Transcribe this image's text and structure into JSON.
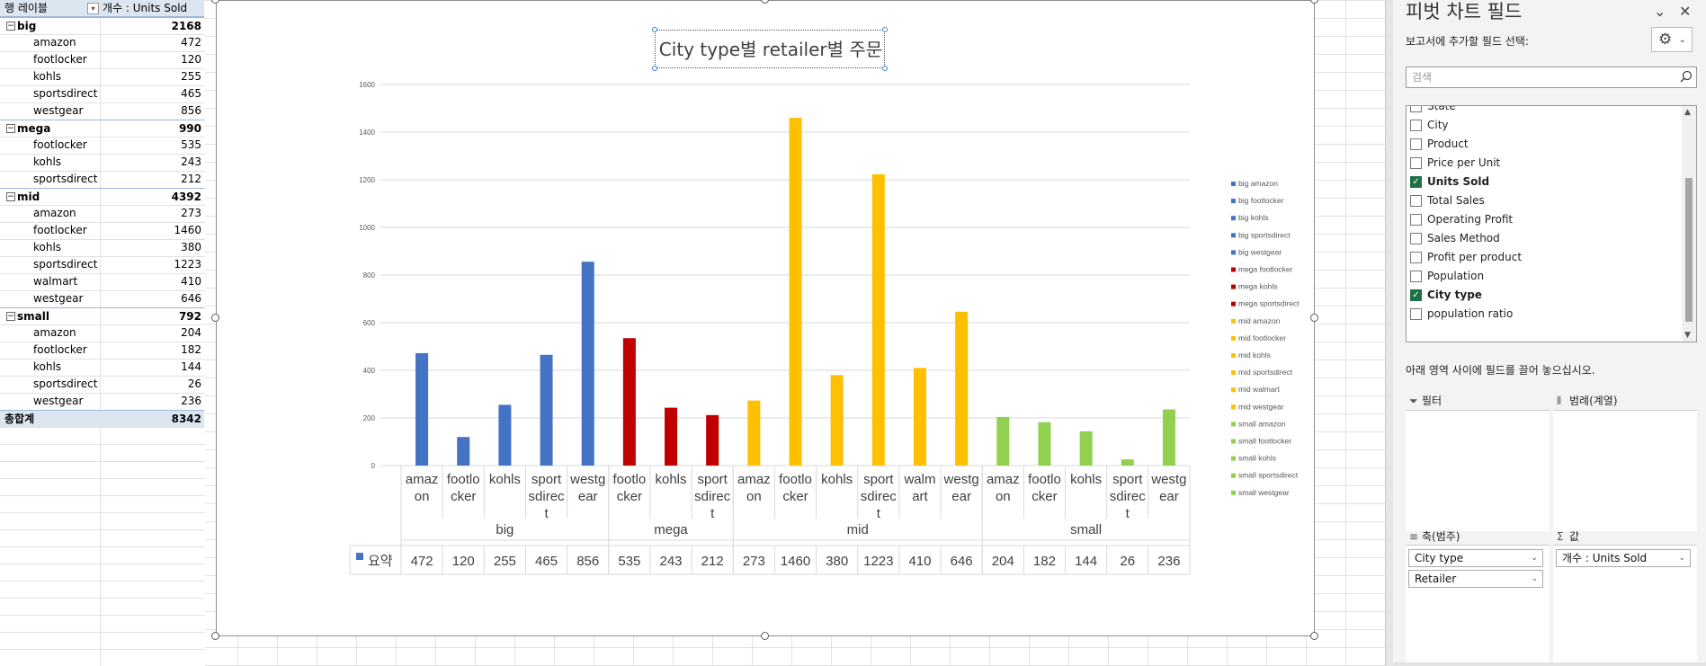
{
  "pivot": {
    "header_row_label": "행 레이블",
    "header_value_label": "개수 : Units Sold",
    "groups": [
      {
        "name": "big",
        "total": "2168",
        "items": [
          {
            "name": "amazon",
            "value": "472"
          },
          {
            "name": "footlocker",
            "value": "120"
          },
          {
            "name": "kohls",
            "value": "255"
          },
          {
            "name": "sportsdirect",
            "value": "465"
          },
          {
            "name": "westgear",
            "value": "856"
          }
        ]
      },
      {
        "name": "mega",
        "total": "990",
        "items": [
          {
            "name": "footlocker",
            "value": "535"
          },
          {
            "name": "kohls",
            "value": "243"
          },
          {
            "name": "sportsdirect",
            "value": "212"
          }
        ]
      },
      {
        "name": "mid",
        "total": "4392",
        "items": [
          {
            "name": "amazon",
            "value": "273"
          },
          {
            "name": "footlocker",
            "value": "1460"
          },
          {
            "name": "kohls",
            "value": "380"
          },
          {
            "name": "sportsdirect",
            "value": "1223"
          },
          {
            "name": "walmart",
            "value": "410"
          },
          {
            "name": "westgear",
            "value": "646"
          }
        ]
      },
      {
        "name": "small",
        "total": "792",
        "items": [
          {
            "name": "amazon",
            "value": "204"
          },
          {
            "name": "footlocker",
            "value": "182"
          },
          {
            "name": "kohls",
            "value": "144"
          },
          {
            "name": "sportsdirect",
            "value": "26"
          },
          {
            "name": "westgear",
            "value": "236"
          }
        ]
      }
    ],
    "grand_total_label": "총합계",
    "grand_total": "8342"
  },
  "chart_data": {
    "type": "bar",
    "title": "City type별 retailer별 주문",
    "ylim": [
      0,
      1600
    ],
    "yticks": [
      0,
      200,
      400,
      600,
      800,
      1000,
      1200,
      1400,
      1600
    ],
    "grid": true,
    "legend_position": "right",
    "table_series_label": "요약",
    "groups": [
      {
        "name": "big",
        "color": "#4472c4",
        "categories": [
          {
            "label": "amazon",
            "lines": [
              "amaz",
              "on"
            ],
            "value": 472
          },
          {
            "label": "footlocker",
            "lines": [
              "footlo",
              "cker"
            ],
            "value": 120
          },
          {
            "label": "kohls",
            "lines": [
              "kohls"
            ],
            "value": 255
          },
          {
            "label": "sportsdirect",
            "lines": [
              "sport",
              "sdirec",
              "t"
            ],
            "value": 465
          },
          {
            "label": "westgear",
            "lines": [
              "westg",
              "ear"
            ],
            "value": 856
          }
        ]
      },
      {
        "name": "mega",
        "color": "#c00000",
        "categories": [
          {
            "label": "footlocker",
            "lines": [
              "footlo",
              "cker"
            ],
            "value": 535
          },
          {
            "label": "kohls",
            "lines": [
              "kohls"
            ],
            "value": 243
          },
          {
            "label": "sportsdirect",
            "lines": [
              "sport",
              "sdirec",
              "t"
            ],
            "value": 212
          }
        ]
      },
      {
        "name": "mid",
        "color": "#ffc000",
        "categories": [
          {
            "label": "amazon",
            "lines": [
              "amaz",
              "on"
            ],
            "value": 273
          },
          {
            "label": "footlocker",
            "lines": [
              "footlo",
              "cker"
            ],
            "value": 1460
          },
          {
            "label": "kohls",
            "lines": [
              "kohls"
            ],
            "value": 380
          },
          {
            "label": "sportsdirect",
            "lines": [
              "sport",
              "sdirec",
              "t"
            ],
            "value": 1223
          },
          {
            "label": "walmart",
            "lines": [
              "walm",
              "art"
            ],
            "value": 410
          },
          {
            "label": "westgear",
            "lines": [
              "westg",
              "ear"
            ],
            "value": 646
          }
        ]
      },
      {
        "name": "small",
        "color": "#92d050",
        "categories": [
          {
            "label": "amazon",
            "lines": [
              "amaz",
              "on"
            ],
            "value": 204
          },
          {
            "label": "footlocker",
            "lines": [
              "footlo",
              "cker"
            ],
            "value": 182
          },
          {
            "label": "kohls",
            "lines": [
              "kohls"
            ],
            "value": 144
          },
          {
            "label": "sportsdirect",
            "lines": [
              "sport",
              "sdirec",
              "t"
            ],
            "value": 26
          },
          {
            "label": "westgear",
            "lines": [
              "westg",
              "ear"
            ],
            "value": 236
          }
        ]
      }
    ],
    "legend": [
      {
        "label": "big amazon",
        "color": "#4472c4"
      },
      {
        "label": "big footlocker",
        "color": "#4472c4"
      },
      {
        "label": "big kohls",
        "color": "#4472c4"
      },
      {
        "label": "big sportsdirect",
        "color": "#4472c4"
      },
      {
        "label": "big westgear",
        "color": "#4472c4"
      },
      {
        "label": "mega footlocker",
        "color": "#c00000"
      },
      {
        "label": "mega kohls",
        "color": "#c00000"
      },
      {
        "label": "mega sportsdirect",
        "color": "#c00000"
      },
      {
        "label": "mid amazon",
        "color": "#ffc000"
      },
      {
        "label": "mid footlocker",
        "color": "#ffc000"
      },
      {
        "label": "mid kohls",
        "color": "#ffc000"
      },
      {
        "label": "mid sportsdirect",
        "color": "#ffc000"
      },
      {
        "label": "mid walmart",
        "color": "#ffc000"
      },
      {
        "label": "mid westgear",
        "color": "#ffc000"
      },
      {
        "label": "small amazon",
        "color": "#92d050"
      },
      {
        "label": "small footlocker",
        "color": "#92d050"
      },
      {
        "label": "small kohls",
        "color": "#92d050"
      },
      {
        "label": "small sportsdirect",
        "color": "#92d050"
      },
      {
        "label": "small westgear",
        "color": "#92d050"
      }
    ]
  },
  "panel": {
    "title": "피벗 차트 필드",
    "subtitle": "보고서에 추가할 필드 선택:",
    "search_placeholder": "검색",
    "fields": [
      {
        "name": "State",
        "checked": false
      },
      {
        "name": "City",
        "checked": false
      },
      {
        "name": "Product",
        "checked": false
      },
      {
        "name": "Price per Unit",
        "checked": false
      },
      {
        "name": "Units Sold",
        "checked": true
      },
      {
        "name": "Total Sales",
        "checked": false
      },
      {
        "name": "Operating Profit",
        "checked": false
      },
      {
        "name": "Sales Method",
        "checked": false
      },
      {
        "name": "Profit per product",
        "checked": false
      },
      {
        "name": "Population",
        "checked": false
      },
      {
        "name": "City type",
        "checked": true
      },
      {
        "name": "population ratio",
        "checked": false
      }
    ],
    "drag_hint": "아래 영역 사이에 필드를 끌어 놓으십시오.",
    "areas": {
      "filter_label": "필터",
      "legend_label": "범례(계열)",
      "axis_label": "축(범주)",
      "values_label": "값",
      "axis_items": [
        "City type",
        "Retailer"
      ],
      "value_items": [
        "개수 : Units Sold"
      ]
    }
  }
}
